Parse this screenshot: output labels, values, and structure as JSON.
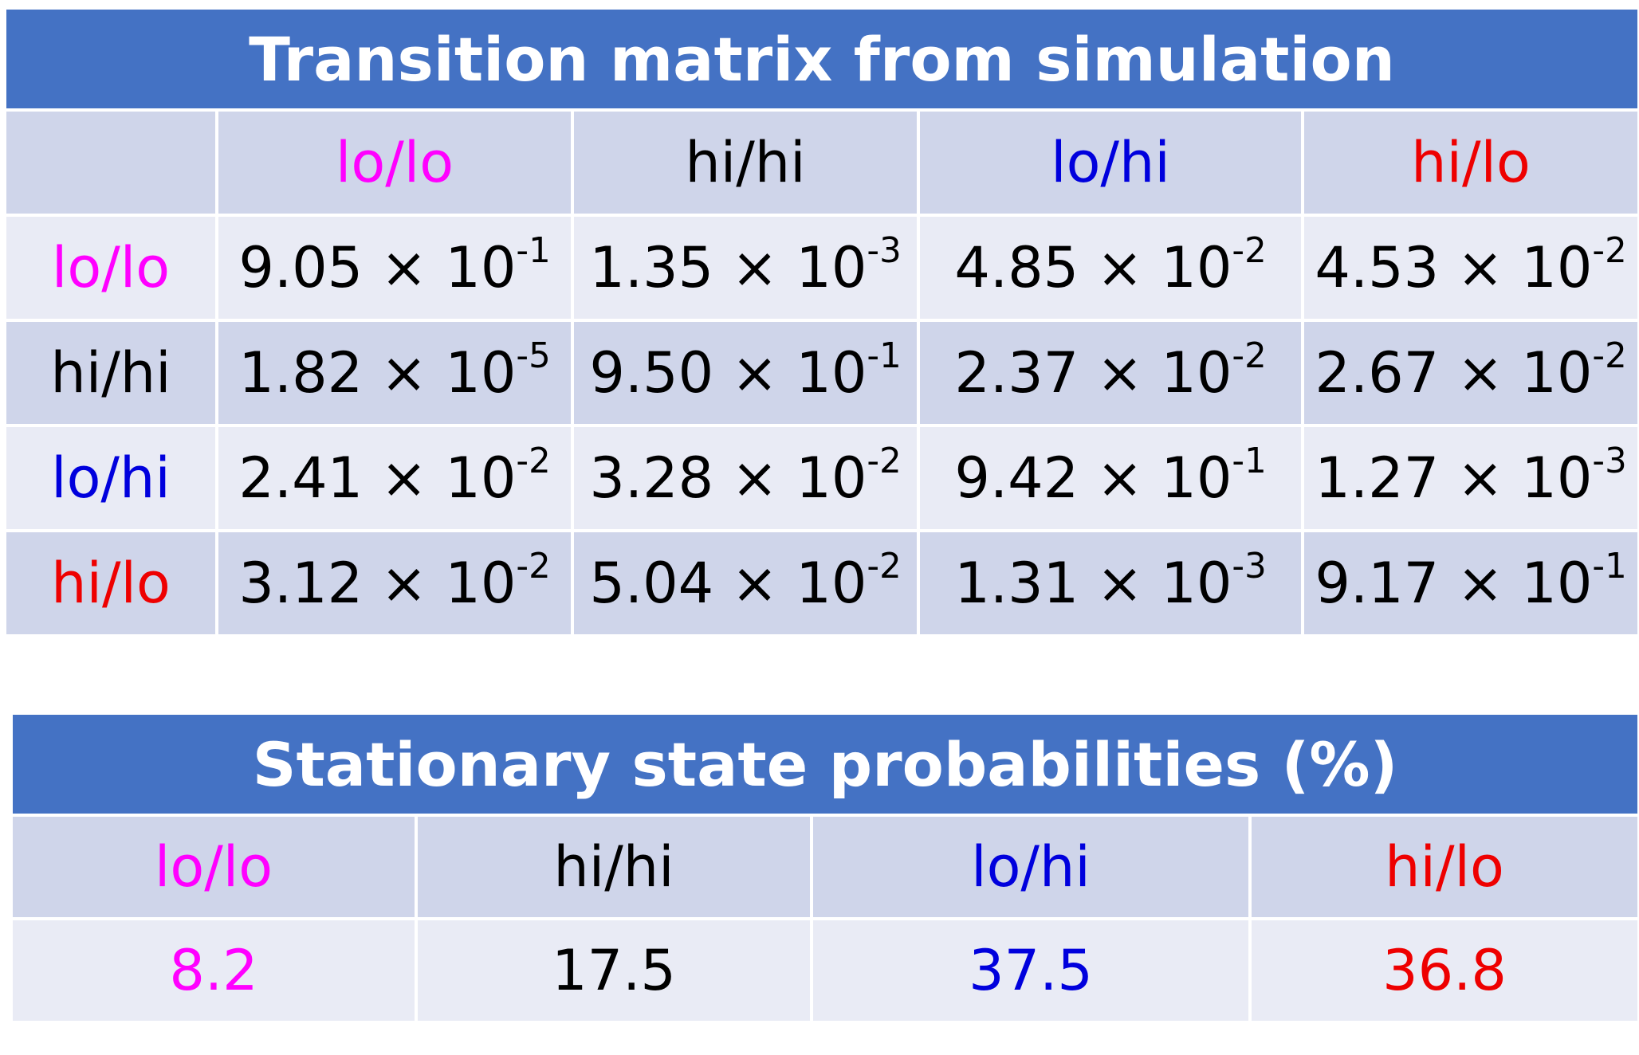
{
  "colors": {
    "title_bg": "#4472c4",
    "header_bg": "#cfd5ea",
    "row_alt_bg": "#e9ebf5",
    "lo_lo": "#ff00ff",
    "hi_hi": "#000000",
    "lo_hi": "#0000dd",
    "hi_lo": "#ee0000"
  },
  "transition_table": {
    "title": "Transition matrix from simulation",
    "columns": [
      "lo/lo",
      "hi/hi",
      "lo/hi",
      "hi/lo"
    ],
    "rows": [
      {
        "label": "lo/lo",
        "cells": [
          {
            "mant": "9.05 × 10",
            "exp": "-1"
          },
          {
            "mant": "1.35 × 10",
            "exp": "-3"
          },
          {
            "mant": "4.85 × 10",
            "exp": "-2"
          },
          {
            "mant": "4.53 × 10",
            "exp": "-2"
          }
        ]
      },
      {
        "label": "hi/hi",
        "cells": [
          {
            "mant": "1.82 × 10",
            "exp": "-5"
          },
          {
            "mant": "9.50 × 10",
            "exp": "-1"
          },
          {
            "mant": "2.37 × 10",
            "exp": "-2"
          },
          {
            "mant": "2.67 × 10",
            "exp": "-2"
          }
        ]
      },
      {
        "label": "lo/hi",
        "cells": [
          {
            "mant": "2.41 × 10",
            "exp": "-2"
          },
          {
            "mant": "3.28 × 10",
            "exp": "-2"
          },
          {
            "mant": "9.42 × 10",
            "exp": "-1"
          },
          {
            "mant": "1.27 × 10",
            "exp": "-3"
          }
        ]
      },
      {
        "label": "hi/lo",
        "cells": [
          {
            "mant": "3.12 × 10",
            "exp": "-2"
          },
          {
            "mant": "5.04 × 10",
            "exp": "-2"
          },
          {
            "mant": "1.31 × 10",
            "exp": "-3"
          },
          {
            "mant": "9.17 × 10",
            "exp": "-1"
          }
        ]
      }
    ]
  },
  "stationary_table": {
    "title": "Stationary state probabilities (%)",
    "columns": [
      "lo/lo",
      "hi/hi",
      "lo/hi",
      "hi/lo"
    ],
    "values": [
      "8.2",
      "17.5",
      "37.5",
      "36.8"
    ]
  }
}
